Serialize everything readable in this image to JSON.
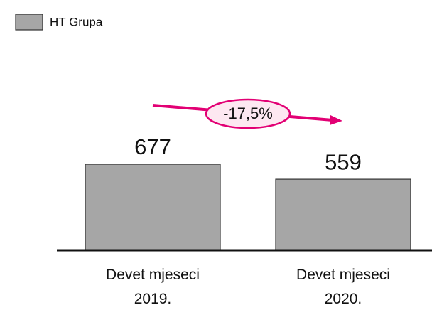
{
  "chart_data": {
    "type": "bar",
    "categories": [
      "Devet mjeseci 2019.",
      "Devet mjeseci 2020."
    ],
    "series": [
      {
        "name": "HT Grupa",
        "color": "#a6a6a6",
        "values": [
          677,
          559
        ]
      }
    ],
    "annotation": "-17,5%"
  }
}
